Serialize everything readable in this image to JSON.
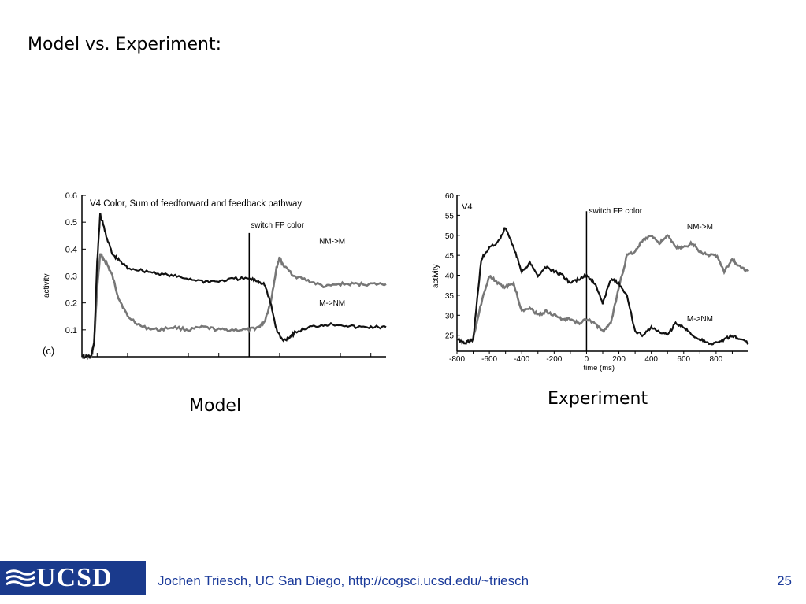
{
  "slide": {
    "title": "Model vs. Experiment:",
    "model_caption": "Model",
    "experiment_caption": "Experiment"
  },
  "footer": {
    "logo_text": "UCSD",
    "text": "Jochen Triesch, UC San Diego, http://cogsci.ucsd.edu/~triesch",
    "page_number": "25"
  },
  "colors": {
    "footer_text": "#1a3a9a",
    "logo_bg": "#1a3a8c",
    "series_dark": "#111111",
    "series_light": "#777777"
  },
  "chart_data": [
    {
      "type": "line",
      "title": "V4 Color, Sum of feedforward and feedback pathway",
      "ylabel": "activity",
      "xlabel": "",
      "panel_label": "(c)",
      "ylim": [
        0,
        0.6
      ],
      "yticks": [
        "0.1",
        "0.2",
        "0.3",
        "0.4",
        "0.5",
        "0.6"
      ],
      "yticks_values": [
        0.1,
        0.2,
        0.3,
        0.4,
        0.5,
        0.6
      ],
      "xlim": [
        0,
        100
      ],
      "x_ticks_unlabeled": [
        5,
        15,
        25,
        35,
        45,
        55,
        65,
        75,
        85,
        95
      ],
      "annotation": {
        "text": "switch FP color",
        "x": 55
      },
      "series": [
        {
          "name": "NM->M",
          "style": "light",
          "x": [
            0,
            3,
            4,
            5,
            6,
            8,
            10,
            12,
            15,
            20,
            25,
            30,
            35,
            40,
            45,
            50,
            55,
            58,
            60,
            62,
            64,
            65,
            66,
            70,
            75,
            80,
            85,
            90,
            95,
            100
          ],
          "y": [
            0,
            0,
            0.05,
            0.25,
            0.38,
            0.35,
            0.3,
            0.22,
            0.15,
            0.11,
            0.1,
            0.11,
            0.1,
            0.11,
            0.1,
            0.1,
            0.1,
            0.11,
            0.13,
            0.2,
            0.33,
            0.37,
            0.34,
            0.3,
            0.28,
            0.26,
            0.27,
            0.27,
            0.27,
            0.27
          ]
        },
        {
          "name": "M->NM",
          "style": "dark",
          "x": [
            0,
            3,
            4,
            5,
            6,
            8,
            10,
            12,
            15,
            20,
            25,
            30,
            35,
            40,
            45,
            50,
            55,
            58,
            60,
            62,
            64,
            66,
            68,
            70,
            75,
            80,
            85,
            90,
            95,
            100
          ],
          "y": [
            0,
            0,
            0.05,
            0.35,
            0.53,
            0.45,
            0.38,
            0.36,
            0.33,
            0.32,
            0.31,
            0.3,
            0.29,
            0.28,
            0.28,
            0.29,
            0.29,
            0.28,
            0.27,
            0.2,
            0.1,
            0.06,
            0.07,
            0.09,
            0.11,
            0.12,
            0.12,
            0.11,
            0.11,
            0.11
          ]
        }
      ]
    },
    {
      "type": "line",
      "title": "V4",
      "xlabel": "time (ms)",
      "ylabel": "activity",
      "xlim": [
        -800,
        1000
      ],
      "ylim": [
        21,
        60
      ],
      "xticks": [
        -800,
        -600,
        -400,
        -200,
        0,
        200,
        400,
        600,
        800
      ],
      "yticks": [
        25,
        30,
        35,
        40,
        45,
        50,
        55,
        60
      ],
      "annotation": {
        "text": "switch FP color",
        "x": 0
      },
      "series": [
        {
          "name": "NM->M",
          "style": "light",
          "x": [
            -800,
            -750,
            -700,
            -650,
            -600,
            -550,
            -500,
            -450,
            -400,
            -350,
            -300,
            -250,
            -200,
            -150,
            -100,
            -50,
            0,
            50,
            100,
            150,
            200,
            250,
            300,
            350,
            400,
            450,
            500,
            550,
            600,
            650,
            700,
            750,
            800,
            850,
            900,
            950,
            1000
          ],
          "y": [
            24,
            23,
            24,
            33,
            40,
            38,
            37,
            38,
            31,
            32,
            30,
            31,
            30,
            29,
            29,
            28,
            29,
            28,
            26,
            28,
            37,
            45,
            46,
            49,
            50,
            48,
            50,
            47,
            47,
            48,
            46,
            45,
            45,
            41,
            44,
            42,
            41
          ]
        },
        {
          "name": "M->NM",
          "style": "dark",
          "x": [
            -800,
            -750,
            -700,
            -650,
            -600,
            -550,
            -500,
            -450,
            -400,
            -350,
            -300,
            -250,
            -200,
            -150,
            -100,
            -50,
            0,
            50,
            100,
            150,
            200,
            250,
            300,
            350,
            400,
            450,
            500,
            550,
            600,
            650,
            700,
            750,
            800,
            850,
            900,
            950,
            1000
          ],
          "y": [
            24,
            23,
            24,
            44,
            47,
            48,
            52,
            47,
            41,
            43,
            40,
            42,
            41,
            40,
            38,
            39,
            40,
            38,
            33,
            39,
            38,
            35,
            26,
            25,
            27,
            26,
            25,
            28,
            27,
            25,
            24,
            23,
            23,
            24,
            25,
            24,
            23
          ]
        }
      ]
    }
  ]
}
